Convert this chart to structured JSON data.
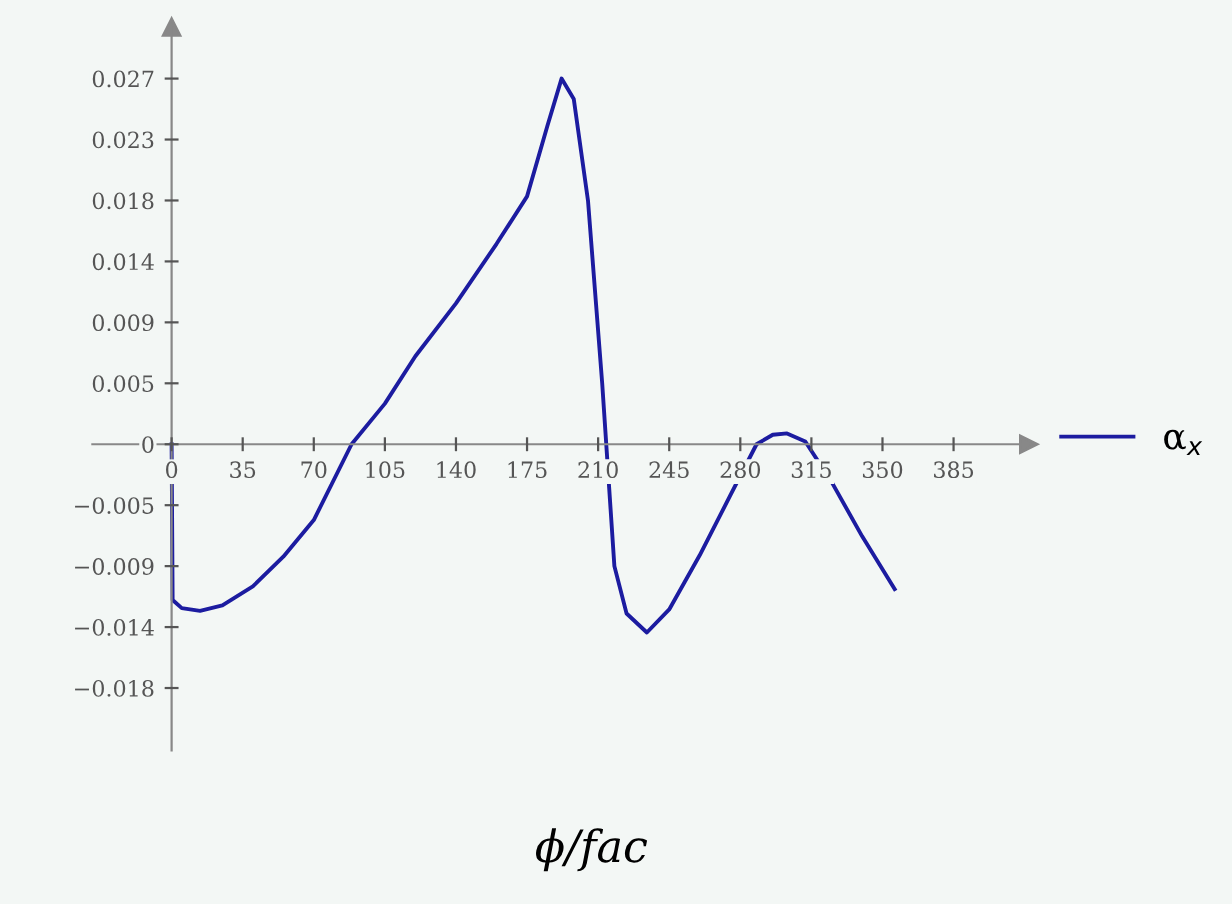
{
  "chart_data": {
    "type": "line",
    "xlabel": "ϕ/fac",
    "x": [
      0,
      0.5,
      5,
      14,
      25,
      40,
      55,
      70,
      88.6,
      105,
      120,
      140,
      160,
      175,
      185,
      192,
      198,
      205,
      212,
      218,
      224,
      234,
      245,
      260,
      275,
      288,
      296,
      303,
      312,
      325,
      340,
      356
    ],
    "series": [
      {
        "name": "α$_{x}$",
        "color": "#1c1ca0",
        "values": [
          0,
          -0.0115,
          -0.0121,
          -0.0123,
          -0.0119,
          -0.0105,
          -0.0083,
          -0.0056,
          0,
          0.003,
          0.0065,
          0.0104,
          0.0148,
          0.0183,
          0.0235,
          0.027,
          0.0255,
          0.018,
          0.0045,
          -0.009,
          -0.0125,
          -0.0139,
          -0.0122,
          -0.0082,
          -0.0038,
          0,
          0.0007,
          0.0008,
          0.0002,
          -0.0028,
          -0.0068,
          -0.0107
        ]
      }
    ],
    "xlim": [
      -39,
      422
    ],
    "xticks": [
      0,
      35,
      70,
      105,
      140,
      175,
      210,
      245,
      280,
      315,
      350,
      385
    ],
    "ylim": [
      -0.0226,
      0.0308
    ],
    "yticks": [
      {
        "value": -0.018,
        "label": "−0.018"
      },
      {
        "value": -0.0135,
        "label": "−0.014"
      },
      {
        "value": -0.009,
        "label": "−0.009"
      },
      {
        "value": -0.0045,
        "label": "−0.005"
      },
      0,
      {
        "value": 0.0045,
        "label": "0.005"
      },
      {
        "value": 0.009,
        "label": "0.009"
      },
      {
        "value": 0.0135,
        "label": "0.014"
      },
      {
        "value": 0.018,
        "label": "0.018"
      },
      {
        "value": 0.0225,
        "label": "0.023"
      },
      {
        "value": 0.027,
        "label": "0.027"
      }
    ],
    "legend": "right",
    "grid": false,
    "marker": "none",
    "line_style": "solid"
  }
}
